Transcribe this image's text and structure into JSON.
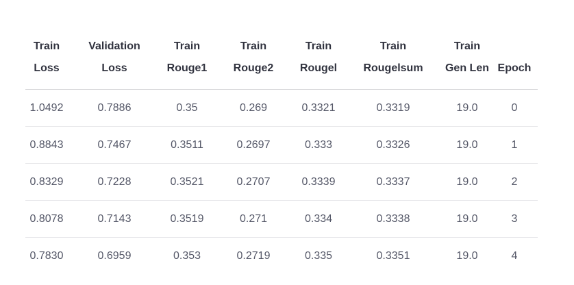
{
  "table": {
    "columns": [
      {
        "line1": "Train",
        "line2": "Loss"
      },
      {
        "line1": "Validation",
        "line2": "Loss"
      },
      {
        "line1": "Train",
        "line2": "Rouge1"
      },
      {
        "line1": "Train",
        "line2": "Rouge2"
      },
      {
        "line1": "Train",
        "line2": "Rougel"
      },
      {
        "line1": "Train",
        "line2": "Rougelsum"
      },
      {
        "line1": "Train",
        "line2": "Gen Len"
      },
      {
        "line1": "",
        "line2": "Epoch"
      }
    ],
    "rows": [
      [
        "1.0492",
        "0.7886",
        "0.35",
        "0.269",
        "0.3321",
        "0.3319",
        "19.0",
        "0"
      ],
      [
        "0.8843",
        "0.7467",
        "0.3511",
        "0.2697",
        "0.333",
        "0.3326",
        "19.0",
        "1"
      ],
      [
        "0.8329",
        "0.7228",
        "0.3521",
        "0.2707",
        "0.3339",
        "0.3337",
        "19.0",
        "2"
      ],
      [
        "0.8078",
        "0.7143",
        "0.3519",
        "0.271",
        "0.334",
        "0.3338",
        "19.0",
        "3"
      ],
      [
        "0.7830",
        "0.6959",
        "0.353",
        "0.2719",
        "0.335",
        "0.3351",
        "19.0",
        "4"
      ]
    ]
  }
}
